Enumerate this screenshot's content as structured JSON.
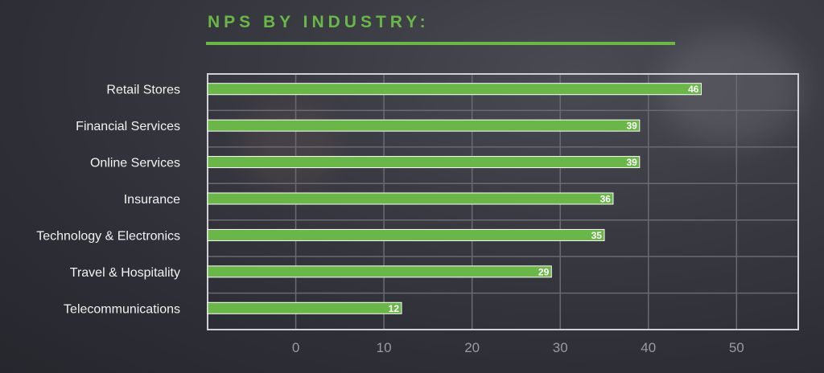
{
  "chart_data": {
    "type": "bar",
    "orientation": "horizontal",
    "title": "NPS BY INDUSTRY:",
    "categories": [
      "Retail Stores",
      "Financial Services",
      "Online Services",
      "Insurance",
      "Technology & Electronics",
      "Travel & Hospitality",
      "Telecommunications"
    ],
    "values": [
      46,
      39,
      39,
      36,
      35,
      29,
      12
    ],
    "xlim": [
      -10,
      57
    ],
    "xticks": [
      0,
      10,
      20,
      30,
      40,
      50
    ],
    "grid": true,
    "data_labels": true,
    "bar_color": "#6ab648"
  }
}
